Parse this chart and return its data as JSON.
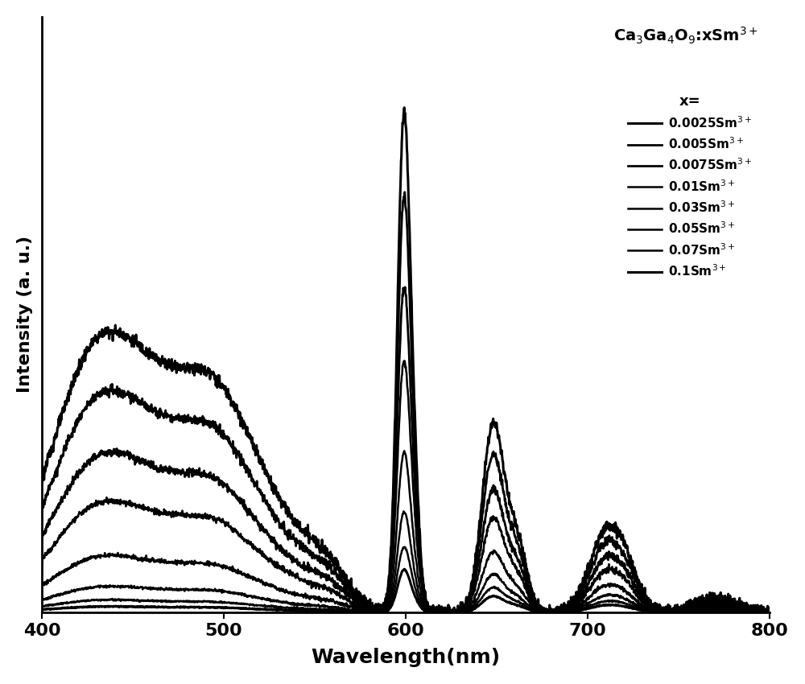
{
  "xlabel": "Wavelength(nm)",
  "ylabel": "Intensity (a. u.)",
  "xlim": [
    400,
    800
  ],
  "x_ticks": [
    400,
    500,
    600,
    700,
    800
  ],
  "legend_labels": [
    "0.0025Sm$^{3+}$",
    "0.005Sm$^{3+}$",
    "0.0075Sm$^{3+}$",
    "0.01Sm$^{3+}$",
    "0.03Sm$^{3+}$",
    "0.05Sm$^{3+}$",
    "0.07Sm$^{3+}$",
    "0.1Sm$^{3+}$"
  ],
  "line_color": "#000000",
  "bg_color": "#ffffff",
  "formula_text": "Ca$_3$Ga$_4$O$_9$:xSm$^{3+}$",
  "legend_title": "x=",
  "peak_scales": [
    1.0,
    0.83,
    0.65,
    0.5,
    0.32,
    0.2,
    0.13,
    0.085
  ],
  "broad_ratios": [
    0.82,
    0.78,
    0.72,
    0.65,
    0.52,
    0.38,
    0.28,
    0.2
  ]
}
